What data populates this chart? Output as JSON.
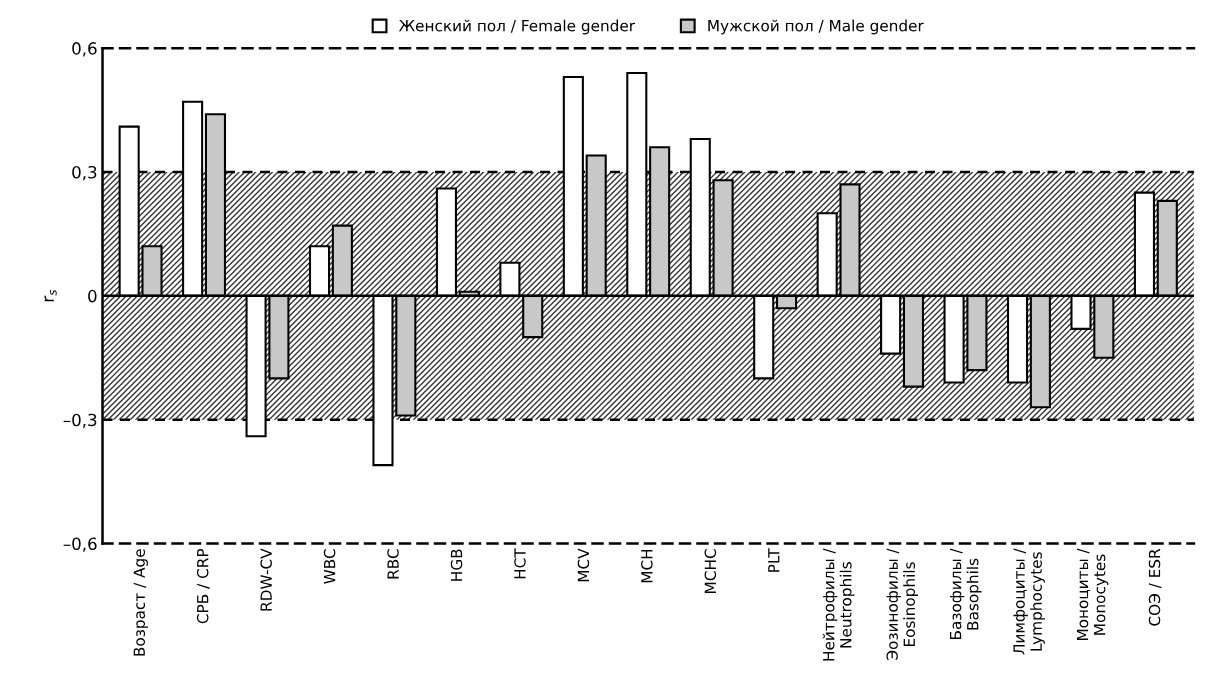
{
  "chart_data": {
    "type": "bar",
    "ylabel": "r$_{s}$",
    "categories": [
      "Возраст / Age",
      "СРБ / CRP",
      "RDW-CV",
      "WBC",
      "RBC",
      "HGB",
      "HCT",
      "MCV",
      "MCH",
      "MCHC",
      "PLT",
      "Нейтрофилы /\nNeutrophils",
      "Эозинофилы /\nEosinophils",
      "Базофилы /\nBasophils",
      "Лимфоциты /\nLymphocytes",
      "Моноциты /\nMonocytes",
      "СОЭ / ESR"
    ],
    "series": [
      {
        "name": "Женский пол / Female gender",
        "color": "#ffffff",
        "values": [
          0.41,
          0.47,
          -0.34,
          0.12,
          -0.41,
          0.26,
          0.08,
          0.53,
          0.54,
          0.38,
          -0.2,
          0.2,
          -0.14,
          -0.21,
          -0.21,
          -0.08,
          0.25
        ]
      },
      {
        "name": "Мужской пол / Male gender",
        "color": "#c8c8c8",
        "values": [
          0.12,
          0.44,
          -0.2,
          0.17,
          -0.29,
          0.01,
          -0.1,
          0.34,
          0.36,
          0.28,
          -0.03,
          0.27,
          -0.22,
          -0.18,
          -0.27,
          -0.15,
          0.23
        ]
      }
    ],
    "ylim": [
      -0.6,
      0.6
    ],
    "yticks": [
      {
        "value": -0.6,
        "label": "–0,6"
      },
      {
        "value": -0.3,
        "label": "–0,3"
      },
      0,
      {
        "value": 0.3,
        "label": "0,3"
      },
      {
        "value": 0.6,
        "label": "0,6"
      }
    ],
    "bands": [
      {
        "axis": "y",
        "from": -0.3,
        "to": 0.3,
        "color": "#333333"
      }
    ],
    "ref_lines": [
      {
        "axis": "y",
        "value": 0.3,
        "line_style": "dashed"
      },
      {
        "axis": "y",
        "value": -0.3,
        "line_style": "dashed"
      }
    ],
    "grid": false,
    "legend": "top"
  }
}
